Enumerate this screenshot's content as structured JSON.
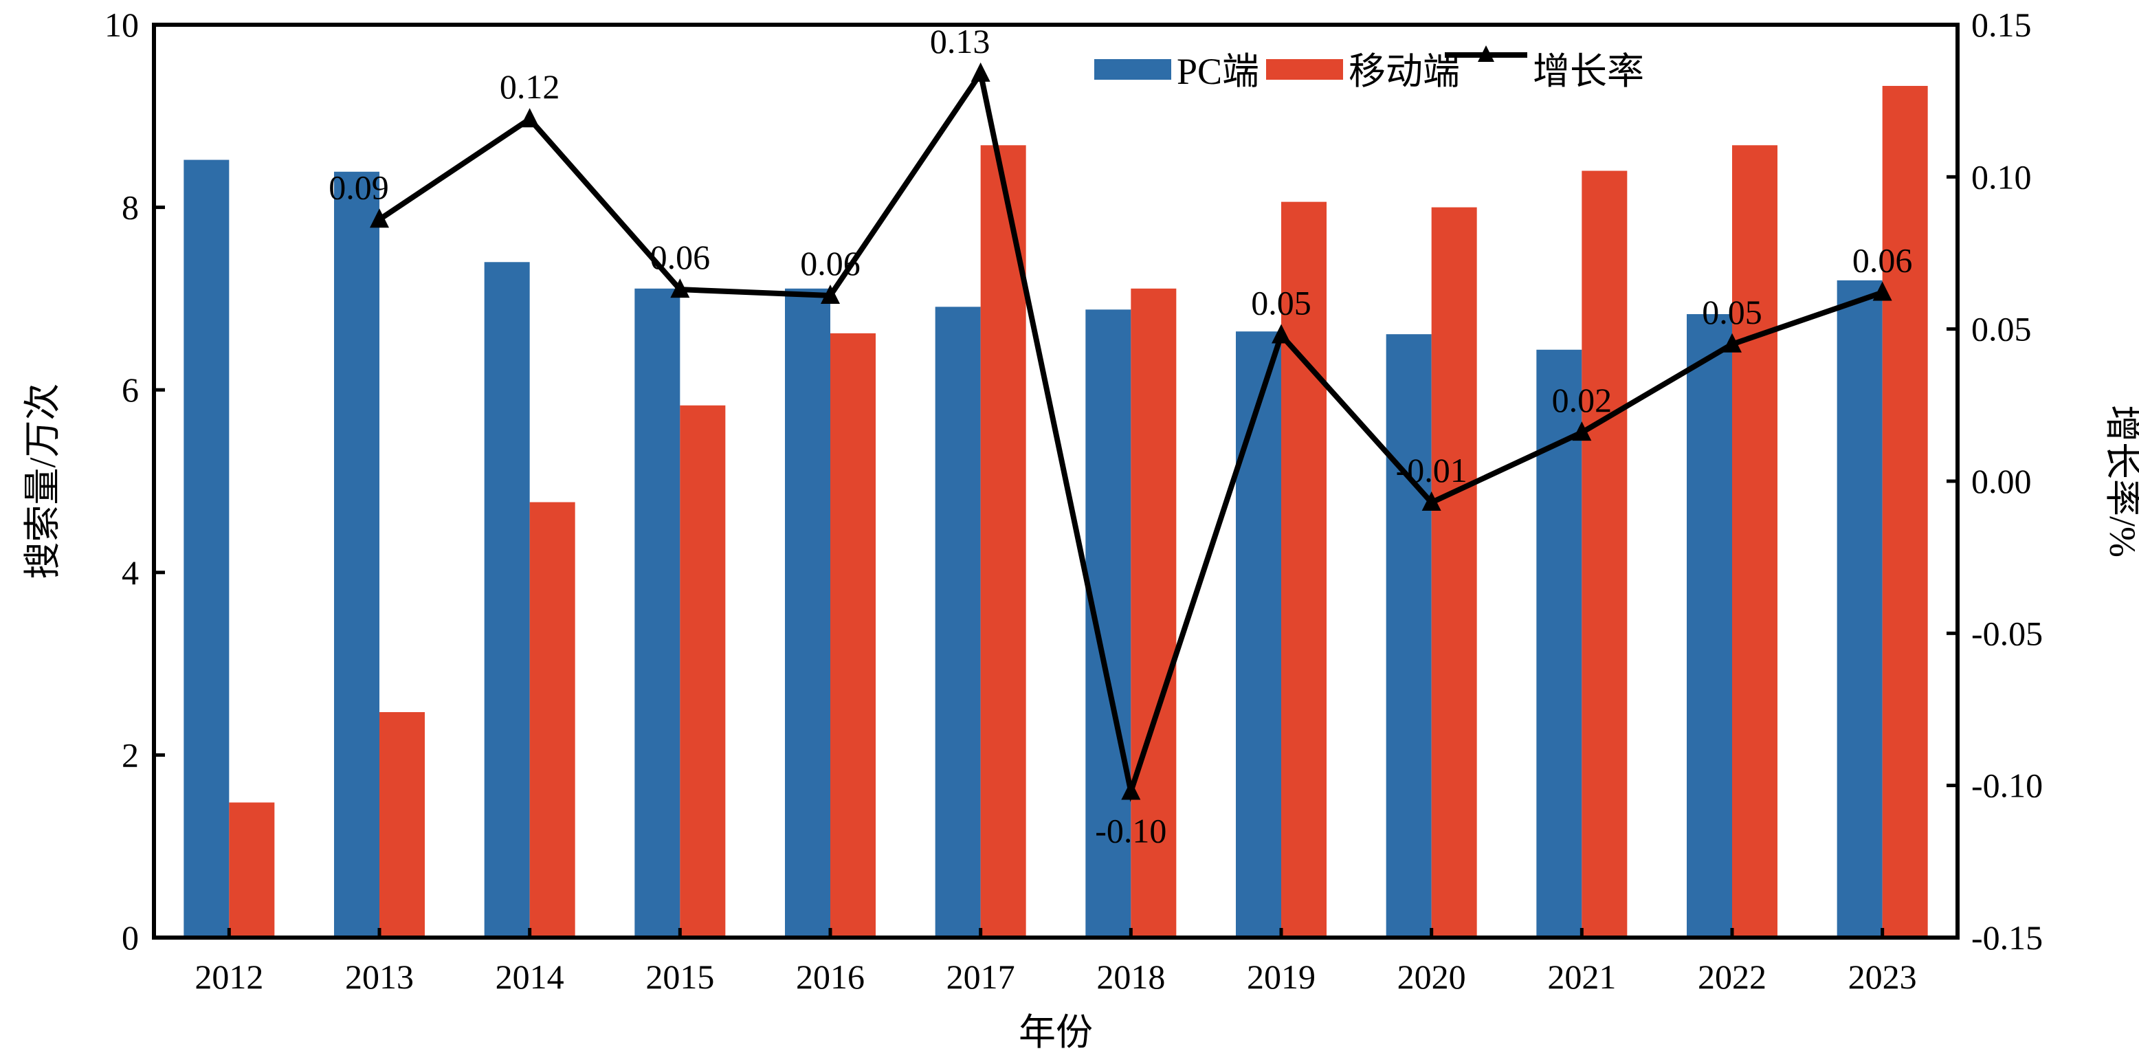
{
  "chart_data": {
    "type": "bar",
    "title": "",
    "xlabel": "年份",
    "ylabel": "搜索量/万次",
    "y2label": "增长率/%",
    "categories": [
      "2012",
      "2013",
      "2014",
      "2015",
      "2016",
      "2017",
      "2018",
      "2019",
      "2020",
      "2021",
      "2022",
      "2023"
    ],
    "ylim": [
      0,
      10
    ],
    "yticks": [
      0,
      2,
      4,
      6,
      8,
      10
    ],
    "y2lim": [
      -0.15,
      0.15
    ],
    "y2ticks": [
      "-0.15",
      "-0.10",
      "-0.05",
      "0.00",
      "0.05",
      "0.10",
      "0.15"
    ],
    "legend_position": "top-right",
    "grid": false,
    "series": [
      {
        "name": "PC端",
        "type": "bar",
        "axis": "left",
        "color": "#2e6da8",
        "values": [
          8.52,
          8.39,
          7.4,
          7.11,
          7.11,
          6.91,
          6.88,
          6.64,
          6.61,
          6.44,
          6.83,
          7.2
        ]
      },
      {
        "name": "移动端",
        "type": "bar",
        "axis": "left",
        "color": "#e2462d",
        "values": [
          1.48,
          2.47,
          4.77,
          5.83,
          6.62,
          8.68,
          7.11,
          8.06,
          8.0,
          8.4,
          8.68,
          9.33
        ]
      },
      {
        "name": "增长率",
        "type": "line",
        "axis": "right",
        "color": "#000000",
        "values": [
          null,
          0.086,
          0.119,
          0.063,
          0.061,
          0.134,
          -0.102,
          0.048,
          -0.007,
          0.016,
          0.045,
          0.062
        ],
        "labels": [
          "",
          "0.09",
          "0.12",
          "0.06",
          "0.06",
          "0.13",
          "-0.10",
          "0.05",
          "-0.01",
          "0.02",
          "0.05",
          "0.06"
        ]
      }
    ]
  }
}
